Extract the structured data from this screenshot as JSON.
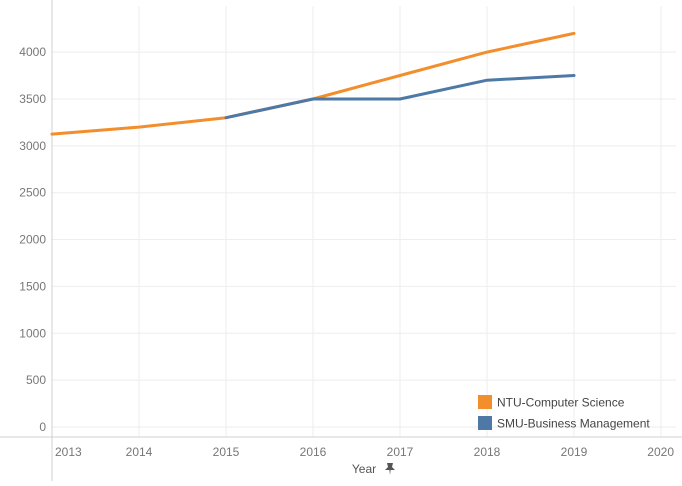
{
  "chart_data": {
    "type": "line",
    "x": [
      2013,
      2014,
      2015,
      2016,
      2017,
      2018,
      2019
    ],
    "xlim": [
      2013,
      2020
    ],
    "x_ticks": [
      "2013",
      "2014",
      "2015",
      "2016",
      "2017",
      "2018",
      "2019",
      "2020"
    ],
    "ylim": [
      0,
      4300
    ],
    "y_ticks": [
      "0",
      "500",
      "1000",
      "1500",
      "2000",
      "2500",
      "3000",
      "3500",
      "4000"
    ],
    "xlabel": "Year",
    "ylabel": "",
    "title": "",
    "grid": true,
    "legend_position": "bottom-right",
    "series": [
      {
        "name": "NTU-Computer Science",
        "color": "#f28e2b",
        "values": [
          3125,
          3200,
          3300,
          3500,
          3750,
          4000,
          4200
        ]
      },
      {
        "name": "SMU-Business Management",
        "color": "#4e79a7",
        "x": [
          2015,
          2016,
          2017,
          2018,
          2019
        ],
        "values": [
          3300,
          3500,
          3500,
          3700,
          3750
        ]
      }
    ],
    "pin_icon": "pin-icon"
  }
}
